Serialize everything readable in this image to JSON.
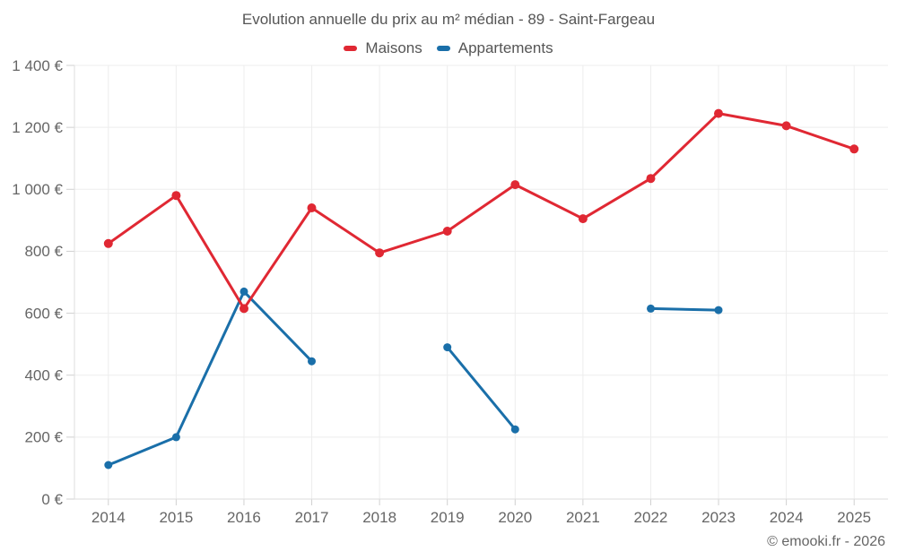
{
  "chart": {
    "title": "Evolution annuelle du prix au m² médian - 89 - Saint-Fargeau"
  },
  "footer": {
    "copyright": "© emooki.fr - 2026"
  },
  "chart_data": {
    "type": "line",
    "title": "Evolution annuelle du prix au m² médian - 89 - Saint-Fargeau",
    "categories": [
      "2014",
      "2015",
      "2016",
      "2017",
      "2018",
      "2019",
      "2020",
      "2021",
      "2022",
      "2023",
      "2024",
      "2025"
    ],
    "series": [
      {
        "name": "Maisons",
        "color": "#e02833",
        "marker_radius": 5,
        "values": [
          825,
          980,
          615,
          940,
          795,
          865,
          1015,
          905,
          1035,
          1245,
          1205,
          1130
        ]
      },
      {
        "name": "Appartements",
        "color": "#1a6fa9",
        "marker_radius": 4.5,
        "values": [
          110,
          200,
          670,
          445,
          null,
          490,
          225,
          null,
          615,
          610,
          null,
          null
        ]
      }
    ],
    "xlabel": "",
    "ylabel": "",
    "ylim": [
      0,
      1400
    ],
    "y_ticks": [
      0,
      200,
      400,
      600,
      800,
      1000,
      1200,
      1400
    ],
    "y_tick_labels": [
      "0 €",
      "200 €",
      "400 €",
      "600 €",
      "800 €",
      "1 000 €",
      "1 200 €",
      "1 400 €"
    ],
    "grid": true,
    "legend_position": "top"
  }
}
